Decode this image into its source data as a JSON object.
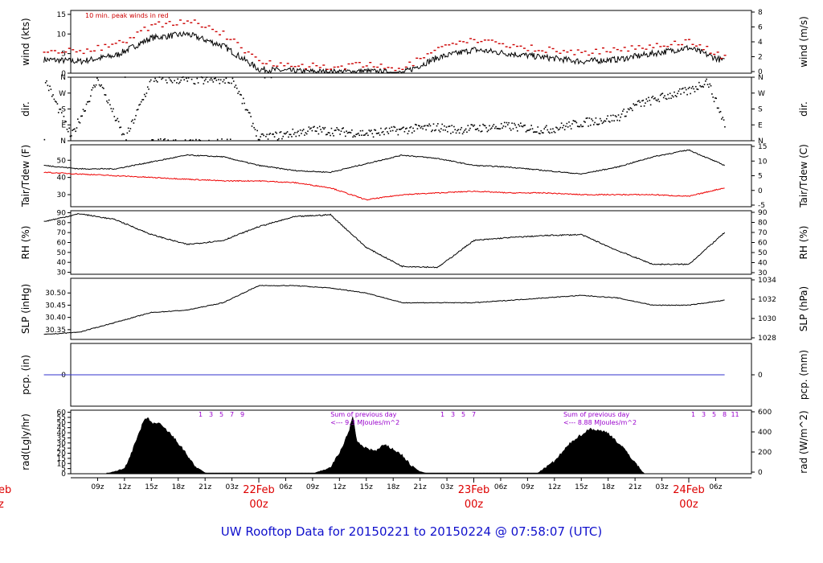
{
  "title": "UW Rooftop Data for 20150221  to  20150224 @ 07:58:07  (UTC)",
  "time_ticks": [
    "09z",
    "12z",
    "15z",
    "18z",
    "21z",
    "03z",
    "06z",
    "09z",
    "12z",
    "15z",
    "18z",
    "21z",
    "03z",
    "06z",
    "09z",
    "12z",
    "15z",
    "18z",
    "21z",
    "03z",
    "06z"
  ],
  "day_labels": [
    {
      "date": "22Feb",
      "hour": "00z"
    },
    {
      "date": "23Feb",
      "hour": "00z"
    },
    {
      "date": "24Feb",
      "hour": "00z"
    }
  ],
  "cut_label": {
    "date": "eb",
    "hour": "z"
  },
  "chart_data": [
    {
      "type": "line",
      "name": "wind",
      "ylabel_left": "wind (kts)",
      "ylabel_right": "wind (m/s)",
      "left_ticks": [
        "0",
        "5",
        "10",
        "15"
      ],
      "right_ticks": [
        "0",
        "2",
        "4",
        "6",
        "8"
      ],
      "ylim": [
        0,
        16
      ],
      "annotation": "10 min. peak winds in red",
      "series": [
        {
          "name": "mean wind (kts)",
          "color": "#000000",
          "x_hours": [
            0,
            4,
            8,
            12,
            16,
            20,
            24,
            28,
            32,
            36,
            40,
            44,
            48,
            52,
            56,
            60,
            64,
            68,
            72,
            76
          ],
          "values": [
            3.5,
            3,
            4.5,
            9,
            10,
            7,
            1,
            0.5,
            0.3,
            0.5,
            0,
            4,
            6,
            5,
            4,
            3,
            3.5,
            5,
            6.5,
            3
          ]
        },
        {
          "name": "10 min peak (kts)",
          "color": "#cc0000",
          "x_hours": [
            0,
            4,
            8,
            12,
            16,
            20,
            24,
            28,
            32,
            36,
            40,
            44,
            48,
            52,
            56,
            60,
            64,
            68,
            72,
            76
          ],
          "values": [
            6,
            5.5,
            7,
            12,
            13.5,
            10,
            3,
            2,
            1.5,
            2,
            1,
            6,
            8.5,
            7,
            6,
            5,
            6,
            7,
            8,
            4
          ]
        }
      ]
    },
    {
      "type": "scatter",
      "name": "direction",
      "ylabel_left": "dir.",
      "ylabel_right": "dir.",
      "left_ticks": [
        "N",
        "E",
        "S",
        "W",
        "N"
      ],
      "right_ticks": [
        "N",
        "E",
        "S",
        "W",
        "N"
      ],
      "ylim": [
        0,
        360
      ],
      "series": [
        {
          "name": "wind direction (deg)",
          "x_hours": [
            0,
            3,
            6,
            9,
            12,
            15,
            18,
            21,
            24,
            30,
            36,
            40,
            42,
            44,
            46,
            48,
            52,
            56,
            60,
            64,
            66,
            68,
            70,
            72,
            74,
            76
          ],
          "values": [
            355,
            20,
            350,
            5,
            350,
            345,
            340,
            350,
            10,
            60,
            40,
            60,
            70,
            75,
            60,
            70,
            80,
            60,
            100,
            130,
            200,
            230,
            260,
            280,
            340,
            90
          ]
        }
      ]
    },
    {
      "type": "line",
      "name": "temperature",
      "ylabel_left": "Tair/Tdew (F)",
      "ylabel_right": "Tair/Tdew (C)",
      "left_ticks": [
        "30",
        "40",
        "50"
      ],
      "right_ticks": [
        "-5",
        "0",
        "5",
        "10",
        "15"
      ],
      "ylim": [
        23,
        59
      ],
      "series": [
        {
          "name": "Tair (F)",
          "color": "#000000",
          "x_hours": [
            0,
            4,
            8,
            12,
            16,
            20,
            24,
            28,
            32,
            36,
            40,
            44,
            48,
            52,
            56,
            60,
            64,
            68,
            72,
            76
          ],
          "values": [
            47,
            45,
            45,
            49,
            53,
            52,
            47,
            44,
            43,
            48,
            53,
            51,
            47,
            46,
            44,
            42,
            46,
            52,
            56,
            47
          ]
        },
        {
          "name": "Tdew (F)",
          "color": "#ee0000",
          "x_hours": [
            0,
            4,
            8,
            12,
            16,
            20,
            24,
            28,
            32,
            36,
            40,
            44,
            48,
            52,
            56,
            60,
            64,
            68,
            72,
            76
          ],
          "values": [
            43,
            42,
            41,
            40,
            39,
            38,
            38,
            37,
            34,
            27,
            30,
            31,
            32,
            31,
            31,
            30,
            30,
            30,
            29,
            34
          ]
        }
      ]
    },
    {
      "type": "line",
      "name": "relative humidity",
      "ylabel_left": "RH (%)",
      "ylabel_right": "RH (%)",
      "left_ticks": [
        "30",
        "40",
        "50",
        "60",
        "70",
        "80",
        "90"
      ],
      "right_ticks": [
        "30",
        "40",
        "50",
        "60",
        "70",
        "80",
        "90"
      ],
      "ylim": [
        28,
        92
      ],
      "series": [
        {
          "name": "RH (%)",
          "color": "#000000",
          "x_hours": [
            0,
            4,
            8,
            12,
            16,
            20,
            24,
            28,
            32,
            36,
            40,
            44,
            48,
            52,
            56,
            60,
            64,
            68,
            72,
            76
          ],
          "values": [
            81,
            89,
            83,
            68,
            58,
            62,
            76,
            86,
            88,
            55,
            36,
            35,
            62,
            65,
            67,
            68,
            52,
            38,
            38,
            70
          ]
        }
      ]
    },
    {
      "type": "line",
      "name": "sea level pressure",
      "ylabel_left": "SLP (inHg)",
      "ylabel_right": "SLP (hPa)",
      "left_ticks": [
        "30.35",
        "30.40",
        "30.45",
        "30.50"
      ],
      "right_ticks": [
        "1028",
        "1030",
        "1032",
        "1034"
      ],
      "ylim": [
        30.31,
        30.56
      ],
      "series": [
        {
          "name": "SLP (inHg)",
          "color": "#000000",
          "x_hours": [
            0,
            4,
            8,
            12,
            16,
            20,
            24,
            28,
            32,
            36,
            40,
            44,
            48,
            52,
            56,
            60,
            64,
            68,
            72,
            76
          ],
          "values": [
            30.33,
            30.34,
            30.38,
            30.42,
            30.43,
            30.46,
            30.53,
            30.53,
            30.52,
            30.5,
            30.46,
            30.46,
            30.46,
            30.47,
            30.48,
            30.49,
            30.48,
            30.45,
            30.45,
            30.47
          ]
        }
      ]
    },
    {
      "type": "line",
      "name": "precipitation",
      "ylabel_left": "pcp. (in)",
      "ylabel_right": "pcp. (mm)",
      "left_ticks": [
        "0"
      ],
      "right_ticks": [
        "0"
      ],
      "ylim": [
        -1,
        1
      ],
      "series": [
        {
          "name": "precip (in)",
          "color": "#3333cc",
          "x_hours": [
            0,
            76
          ],
          "values": [
            0,
            0
          ]
        }
      ]
    },
    {
      "type": "area",
      "name": "radiation",
      "ylabel_left": "rad(Lgly/hr)",
      "ylabel_right": "rad (W/m^2)",
      "left_ticks": [
        "0",
        "5",
        "10",
        "15",
        "20",
        "25",
        "30",
        "35",
        "40",
        "45",
        "50",
        "55",
        "60"
      ],
      "right_ticks": [
        "0",
        "200",
        "400",
        "600"
      ],
      "ylim": [
        0,
        62
      ],
      "hour_marks": [
        [
          "1",
          "3",
          "5",
          "7",
          "9"
        ],
        [
          "1",
          "3",
          "5",
          "7"
        ],
        [
          "1",
          "3",
          "5",
          "8",
          "11"
        ]
      ],
      "day_notes": [
        {
          "line1": "Sum of previous day",
          "line2": "<--- 9.3 MJoules/m^2"
        },
        {
          "line1": "Sum of previous day",
          "line2": "<--- 8.88 MJoules/m^2"
        }
      ],
      "series": [
        {
          "name": "solar radiation (Lgly/hr)",
          "color": "#000000",
          "x_hours": [
            7,
            9,
            10,
            11,
            11.5,
            12,
            13,
            14,
            15,
            16,
            17,
            18,
            19,
            30,
            32,
            33,
            34,
            34.5,
            35,
            36,
            37,
            38,
            39,
            40,
            41,
            42,
            43,
            55,
            57,
            59,
            61,
            63,
            65,
            67
          ],
          "values": [
            0,
            5,
            25,
            48,
            55,
            50,
            48,
            40,
            30,
            18,
            6,
            1,
            0,
            0,
            6,
            20,
            40,
            55,
            30,
            25,
            22,
            28,
            24,
            18,
            8,
            2,
            0,
            0,
            12,
            32,
            44,
            40,
            22,
            0
          ]
        }
      ]
    }
  ]
}
